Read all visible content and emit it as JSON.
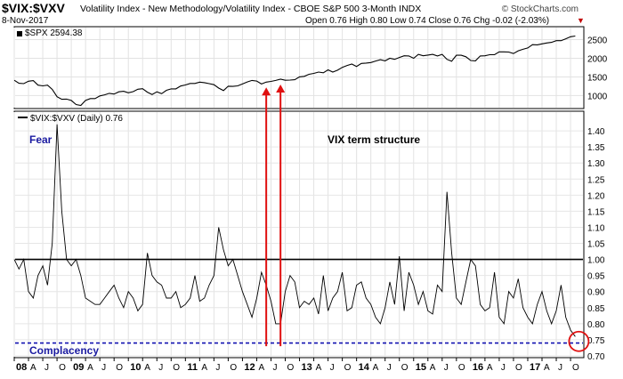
{
  "header": {
    "symbol": "$VIX:$VXV",
    "description": "Volatility Index - New Methodology/Volatility Index - CBOE S&P 500 3-Month  INDX",
    "date": "8-Nov-2017",
    "quote": "Open 0.76  High 0.80  Low 0.74  Close 0.76  Chg -0.02 (-2.03%)",
    "brand": "© StockCharts.com",
    "down_marker": "▼"
  },
  "colors": {
    "price_line": "#000000",
    "ratio_line": "#000000",
    "reference_line": "#000000",
    "complacency_line": "#1010b0",
    "arrows": "#e01010",
    "circle": "#e01010",
    "fear_text": "#1a1aa0",
    "complacency_text": "#1a1aa0",
    "down_marker": "#c00000"
  },
  "chart_data": [
    {
      "type": "line",
      "legend": "$SPX 2594.38",
      "series": [
        {
          "name": "$SPX",
          "x": [
            "2008-01",
            "2008-02",
            "2008-03",
            "2008-04",
            "2008-05",
            "2008-06",
            "2008-07",
            "2008-08",
            "2008-09",
            "2008-10",
            "2008-11",
            "2008-12",
            "2009-01",
            "2009-02",
            "2009-03",
            "2009-04",
            "2009-05",
            "2009-06",
            "2009-07",
            "2009-08",
            "2009-09",
            "2009-10",
            "2009-11",
            "2009-12",
            "2010-01",
            "2010-02",
            "2010-03",
            "2010-04",
            "2010-05",
            "2010-06",
            "2010-07",
            "2010-08",
            "2010-09",
            "2010-10",
            "2010-11",
            "2010-12",
            "2011-01",
            "2011-02",
            "2011-03",
            "2011-04",
            "2011-05",
            "2011-06",
            "2011-07",
            "2011-08",
            "2011-09",
            "2011-10",
            "2011-11",
            "2011-12",
            "2012-01",
            "2012-02",
            "2012-03",
            "2012-04",
            "2012-05",
            "2012-06",
            "2012-07",
            "2012-08",
            "2012-09",
            "2012-10",
            "2012-11",
            "2012-12",
            "2013-01",
            "2013-02",
            "2013-03",
            "2013-04",
            "2013-05",
            "2013-06",
            "2013-07",
            "2013-08",
            "2013-09",
            "2013-10",
            "2013-11",
            "2013-12",
            "2014-01",
            "2014-02",
            "2014-03",
            "2014-04",
            "2014-05",
            "2014-06",
            "2014-07",
            "2014-08",
            "2014-09",
            "2014-10",
            "2014-11",
            "2014-12",
            "2015-01",
            "2015-02",
            "2015-03",
            "2015-04",
            "2015-05",
            "2015-06",
            "2015-07",
            "2015-08",
            "2015-09",
            "2015-10",
            "2015-11",
            "2015-12",
            "2016-01",
            "2016-02",
            "2016-03",
            "2016-04",
            "2016-05",
            "2016-06",
            "2016-07",
            "2016-08",
            "2016-09",
            "2016-10",
            "2016-11",
            "2016-12",
            "2017-01",
            "2017-02",
            "2017-03",
            "2017-04",
            "2017-05",
            "2017-06",
            "2017-07",
            "2017-08",
            "2017-09",
            "2017-10",
            "2017-11"
          ],
          "values": [
            1411,
            1330,
            1320,
            1385,
            1400,
            1280,
            1260,
            1280,
            1165,
            970,
            900,
            905,
            870,
            760,
            735,
            870,
            920,
            920,
            990,
            1020,
            1060,
            1040,
            1100,
            1115,
            1075,
            1105,
            1170,
            1185,
            1090,
            1030,
            1100,
            1050,
            1140,
            1180,
            1180,
            1255,
            1285,
            1325,
            1325,
            1360,
            1345,
            1320,
            1290,
            1200,
            1135,
            1250,
            1245,
            1260,
            1310,
            1365,
            1405,
            1390,
            1310,
            1360,
            1380,
            1405,
            1440,
            1410,
            1415,
            1425,
            1500,
            1515,
            1570,
            1595,
            1630,
            1610,
            1690,
            1630,
            1680,
            1755,
            1805,
            1845,
            1780,
            1860,
            1870,
            1885,
            1925,
            1960,
            1930,
            2000,
            1970,
            2020,
            2065,
            2060,
            2000,
            2105,
            2065,
            2085,
            2105,
            2060,
            2105,
            1970,
            1920,
            2080,
            2080,
            2040,
            1940,
            1930,
            2060,
            2065,
            2095,
            2095,
            2170,
            2170,
            2165,
            2125,
            2200,
            2240,
            2275,
            2365,
            2360,
            2385,
            2410,
            2425,
            2470,
            2470,
            2520,
            2575,
            2594
          ]
        }
      ],
      "y_ticks": [
        1000,
        1500,
        2000,
        2500
      ],
      "ylim": [
        700,
        2750
      ],
      "grid": true
    },
    {
      "type": "line",
      "legend": "$VIX:$VXV (Daily) 0.76",
      "annotation_title": "VIX term structure",
      "label_fear": "Fear",
      "label_complacency": "Complacency",
      "series": [
        {
          "name": "$VIX:$VXV",
          "x": [
            "2008-01",
            "2008-02",
            "2008-03",
            "2008-04",
            "2008-05",
            "2008-06",
            "2008-07",
            "2008-08",
            "2008-09",
            "2008-10",
            "2008-11",
            "2008-12",
            "2009-01",
            "2009-02",
            "2009-03",
            "2009-04",
            "2009-05",
            "2009-06",
            "2009-07",
            "2009-08",
            "2009-09",
            "2009-10",
            "2009-11",
            "2009-12",
            "2010-01",
            "2010-02",
            "2010-03",
            "2010-04",
            "2010-05",
            "2010-06",
            "2010-07",
            "2010-08",
            "2010-09",
            "2010-10",
            "2010-11",
            "2010-12",
            "2011-01",
            "2011-02",
            "2011-03",
            "2011-04",
            "2011-05",
            "2011-06",
            "2011-07",
            "2011-08",
            "2011-09",
            "2011-10",
            "2011-11",
            "2011-12",
            "2012-01",
            "2012-02",
            "2012-03",
            "2012-04",
            "2012-05",
            "2012-06",
            "2012-07",
            "2012-08",
            "2012-09",
            "2012-10",
            "2012-11",
            "2012-12",
            "2013-01",
            "2013-02",
            "2013-03",
            "2013-04",
            "2013-05",
            "2013-06",
            "2013-07",
            "2013-08",
            "2013-09",
            "2013-10",
            "2013-11",
            "2013-12",
            "2014-01",
            "2014-02",
            "2014-03",
            "2014-04",
            "2014-05",
            "2014-06",
            "2014-07",
            "2014-08",
            "2014-09",
            "2014-10",
            "2014-11",
            "2014-12",
            "2015-01",
            "2015-02",
            "2015-03",
            "2015-04",
            "2015-05",
            "2015-06",
            "2015-07",
            "2015-08",
            "2015-09",
            "2015-10",
            "2015-11",
            "2015-12",
            "2016-01",
            "2016-02",
            "2016-03",
            "2016-04",
            "2016-05",
            "2016-06",
            "2016-07",
            "2016-08",
            "2016-09",
            "2016-10",
            "2016-11",
            "2016-12",
            "2017-01",
            "2017-02",
            "2017-03",
            "2017-04",
            "2017-05",
            "2017-06",
            "2017-07",
            "2017-08",
            "2017-09",
            "2017-10",
            "2017-11"
          ],
          "values": [
            1.0,
            0.97,
            1.0,
            0.9,
            0.88,
            0.95,
            0.98,
            0.92,
            1.05,
            1.42,
            1.15,
            1.0,
            0.98,
            1.0,
            0.95,
            0.88,
            0.87,
            0.86,
            0.86,
            0.88,
            0.9,
            0.92,
            0.88,
            0.85,
            0.9,
            0.88,
            0.84,
            0.86,
            1.02,
            0.95,
            0.93,
            0.92,
            0.88,
            0.88,
            0.9,
            0.85,
            0.86,
            0.88,
            0.95,
            0.87,
            0.88,
            0.92,
            0.95,
            1.1,
            1.03,
            0.98,
            1.0,
            0.95,
            0.9,
            0.86,
            0.82,
            0.88,
            0.96,
            0.92,
            0.87,
            0.8,
            0.8,
            0.9,
            0.95,
            0.93,
            0.85,
            0.87,
            0.86,
            0.88,
            0.83,
            0.95,
            0.84,
            0.88,
            0.9,
            0.96,
            0.84,
            0.85,
            0.92,
            0.93,
            0.88,
            0.86,
            0.82,
            0.8,
            0.85,
            0.93,
            0.86,
            1.01,
            0.84,
            0.96,
            0.92,
            0.86,
            0.9,
            0.84,
            0.83,
            0.92,
            0.9,
            1.21,
            1.02,
            0.88,
            0.86,
            0.93,
            1.0,
            0.98,
            0.86,
            0.84,
            0.85,
            0.96,
            0.82,
            0.8,
            0.9,
            0.88,
            0.94,
            0.85,
            0.82,
            0.8,
            0.86,
            0.9,
            0.84,
            0.8,
            0.84,
            0.92,
            0.82,
            0.78,
            0.76
          ]
        }
      ],
      "y_ticks": [
        0.7,
        0.75,
        0.8,
        0.85,
        0.9,
        0.95,
        1.0,
        1.05,
        1.1,
        1.15,
        1.2,
        1.25,
        1.3,
        1.35,
        1.4
      ],
      "ylim": [
        0.7,
        1.45
      ],
      "reference_line": 1.0,
      "complacency_line": 0.74,
      "grid": true
    }
  ],
  "x_axis": {
    "labels": [
      "08",
      "A",
      "J",
      "O",
      "09",
      "A",
      "J",
      "O",
      "10",
      "A",
      "J",
      "O",
      "11",
      "A",
      "J",
      "O",
      "12",
      "A",
      "J",
      "O",
      "13",
      "A",
      "J",
      "O",
      "14",
      "A",
      "J",
      "O",
      "15",
      "A",
      "J",
      "O",
      "16",
      "A",
      "J",
      "O",
      "17",
      "A",
      "J",
      "O"
    ],
    "label_dates": [
      "2008-01",
      "2008-04",
      "2008-07",
      "2008-10",
      "2009-01",
      "2009-04",
      "2009-07",
      "2009-10",
      "2010-01",
      "2010-04",
      "2010-07",
      "2010-10",
      "2011-01",
      "2011-04",
      "2011-07",
      "2011-10",
      "2012-01",
      "2012-04",
      "2012-07",
      "2012-10",
      "2013-01",
      "2013-04",
      "2013-07",
      "2013-10",
      "2014-01",
      "2014-04",
      "2014-07",
      "2014-10",
      "2015-01",
      "2015-04",
      "2015-07",
      "2015-10",
      "2016-01",
      "2016-04",
      "2016-07",
      "2016-10",
      "2017-01",
      "2017-04",
      "2017-07",
      "2017-10"
    ]
  },
  "markers": {
    "arrow_dates": [
      "2012-06",
      "2012-09"
    ],
    "circle_date": "2017-11",
    "circle_value": 0.745
  }
}
